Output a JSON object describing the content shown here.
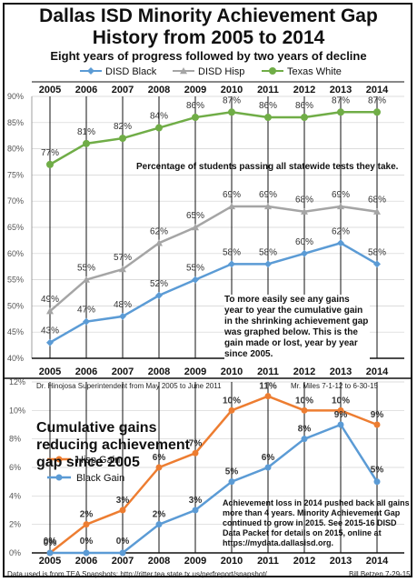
{
  "header": {
    "title_line1": "Dallas ISD Minority Achievement Gap",
    "title_line2": "History from 2005 to 2014",
    "subtitle": "Eight years of progress followed by two years of decline"
  },
  "colors": {
    "black": "#5B9BD5",
    "hisp": "#A5A5A5",
    "white": "#70AD47",
    "gain_hisp": "#ED7D31",
    "gain_black": "#5B9BD5",
    "border": "#111111"
  },
  "chart_data": [
    {
      "type": "line",
      "years": [
        "2005",
        "2006",
        "2007",
        "2008",
        "2009",
        "2010",
        "2011",
        "2012",
        "2013",
        "2014"
      ],
      "ylim": [
        40,
        90
      ],
      "yticks": [
        "40%",
        "45%",
        "50%",
        "55%",
        "60%",
        "65%",
        "70%",
        "75%",
        "80%",
        "85%",
        "90%"
      ],
      "grid": true,
      "legend_position": "top",
      "annotation": "Percentage of students passing all statewide tests they take.",
      "series": [
        {
          "name": "DISD Black",
          "values": [
            43,
            47,
            48,
            52,
            55,
            58,
            58,
            60,
            62,
            58
          ],
          "labels": [
            "43%",
            "47%",
            "48%",
            "52%",
            "55%",
            "58%",
            "58%",
            "60%",
            "62%",
            "58%"
          ],
          "marker": "diamond"
        },
        {
          "name": "DISD Hisp",
          "values": [
            49,
            55,
            57,
            62,
            65,
            69,
            69,
            68,
            69,
            68
          ],
          "labels": [
            "49%",
            "55%",
            "57%",
            "62%",
            "65%",
            "69%",
            "69%",
            "68%",
            "69%",
            "68%"
          ],
          "marker": "triangle"
        },
        {
          "name": "Texas White",
          "values": [
            77,
            81,
            82,
            84,
            86,
            87,
            86,
            86,
            87,
            87
          ],
          "labels": [
            "77%",
            "81%",
            "82%",
            "84%",
            "86%",
            "87%",
            "86%",
            "86%",
            "87%",
            "87%"
          ],
          "marker": "circle"
        }
      ],
      "note": "To more easily see any gains year to year the cumulative gain in the shrinking achievement gap was graphed below.  This is the gain made or lost, year by year since 2005."
    },
    {
      "type": "line",
      "years": [
        "2005",
        "2006",
        "2007",
        "2008",
        "2009",
        "2010",
        "2011",
        "2012",
        "2013",
        "2014"
      ],
      "ylim": [
        0,
        12
      ],
      "yticks": [
        "0%",
        "2%",
        "4%",
        "6%",
        "8%",
        "10%",
        "12%"
      ],
      "grid": true,
      "title": "Cumulative gains reducing achievement gap since 2005",
      "series": [
        {
          "name": "Hisp Gain",
          "values": [
            0,
            2,
            3,
            6,
            7,
            10,
            11,
            10,
            10,
            9
          ],
          "labels": [
            "0%",
            "2%",
            "3%",
            "6%",
            "7%",
            "10%",
            "11%",
            "10%",
            "10%",
            "9%"
          ]
        },
        {
          "name": "Black Gain",
          "values": [
            0,
            0,
            0,
            2,
            3,
            5,
            6,
            8,
            9,
            5
          ],
          "labels": [
            "0%",
            "0%",
            "0%",
            "2%",
            "3%",
            "5%",
            "6%",
            "8%",
            "9%",
            "5%"
          ]
        }
      ],
      "note": "Achievement loss in 2014 pushed back all gains more than 4 years. Minority Achievement Gap continued to grow in 2015. See 2015-16 DISD Data Packet for details on 2015, online at https://mydata.dallasisd.org."
    }
  ],
  "era": {
    "hinojosa": "Dr. Hinojosa  Superintendent from May 2005   to   June 2011",
    "miles": "Mr. Miles 7-1-12 to 6-30-15"
  },
  "footer": {
    "source": "Data used is from TEA Snapshots: http://ritter.tea.state.tx.us/perfreport/snapshot/",
    "author": "Bill Betzen 7-29-15"
  }
}
